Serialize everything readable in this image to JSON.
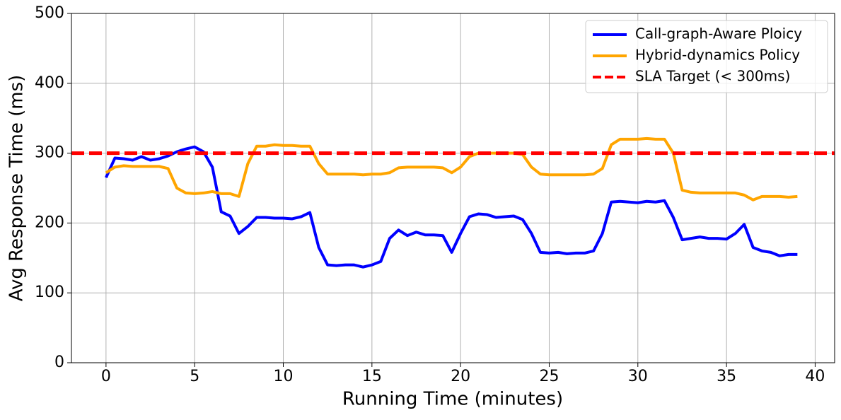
{
  "chart_data": {
    "type": "line",
    "x_label": "Running Time (minutes)",
    "y_label": "Avg Response Time (ms)",
    "x": [
      0,
      0.5,
      1,
      1.5,
      2,
      2.5,
      3,
      3.5,
      4,
      4.5,
      5,
      5.5,
      6,
      6.5,
      7,
      7.5,
      8,
      8.5,
      9,
      9.5,
      10,
      10.5,
      11,
      11.5,
      12,
      12.5,
      13,
      13.5,
      14,
      14.5,
      15,
      15.5,
      16,
      16.5,
      17,
      17.5,
      18,
      18.5,
      19,
      19.5,
      20,
      20.5,
      21,
      21.5,
      22,
      22.5,
      23,
      23.5,
      24,
      24.5,
      25,
      25.5,
      26,
      26.5,
      27,
      27.5,
      28,
      28.5,
      29,
      29.5,
      30,
      30.5,
      31,
      31.5,
      32,
      32.5,
      33,
      33.5,
      34,
      34.5,
      35,
      35.5,
      36,
      36.5,
      37,
      37.5,
      38,
      38.5,
      39
    ],
    "series": [
      {
        "name": "Call-graph-Aware Ploicy",
        "color": "#0000ff",
        "values": [
          265,
          293,
          292,
          290,
          295,
          290,
          292,
          296,
          302,
          306,
          309,
          302,
          280,
          216,
          210,
          185,
          195,
          208,
          208,
          207,
          207,
          206,
          209,
          215,
          165,
          140,
          139,
          140,
          140,
          137,
          140,
          145,
          178,
          190,
          182,
          187,
          183,
          183,
          182,
          158,
          185,
          209,
          213,
          212,
          208,
          209,
          210,
          205,
          185,
          158,
          157,
          158,
          156,
          157,
          157,
          160,
          185,
          230,
          231,
          230,
          229,
          231,
          230,
          232,
          208,
          176,
          178,
          180,
          178,
          178,
          177,
          185,
          198,
          165,
          160,
          158,
          153,
          155,
          155
        ]
      },
      {
        "name": "Hybrid-dynamics Policy",
        "color": "#ffa500",
        "values": [
          272,
          280,
          282,
          281,
          281,
          281,
          281,
          278,
          250,
          243,
          242,
          243,
          245,
          242,
          242,
          238,
          285,
          310,
          310,
          312,
          311,
          311,
          310,
          310,
          285,
          270,
          270,
          270,
          270,
          269,
          270,
          270,
          272,
          279,
          280,
          280,
          280,
          280,
          279,
          272,
          280,
          295,
          300,
          300,
          300,
          300,
          300,
          298,
          280,
          270,
          269,
          269,
          269,
          269,
          269,
          270,
          278,
          312,
          320,
          320,
          320,
          321,
          320,
          320,
          300,
          247,
          244,
          243,
          243,
          243,
          243,
          243,
          240,
          233,
          238,
          238,
          238,
          237,
          238
        ]
      }
    ],
    "reference_lines": [
      {
        "name": "SLA Target (< 300ms)",
        "value": 300,
        "color": "#ff0000",
        "style": "dashed"
      }
    ],
    "xlim": [
      -1.95,
      41.1
    ],
    "xticks": [
      0,
      5,
      10,
      15,
      20,
      25,
      30,
      35,
      40
    ],
    "ylim": [
      0,
      500
    ],
    "yticks": [
      0,
      100,
      200,
      300,
      400,
      500
    ],
    "grid": true,
    "legend": "upper right"
  }
}
